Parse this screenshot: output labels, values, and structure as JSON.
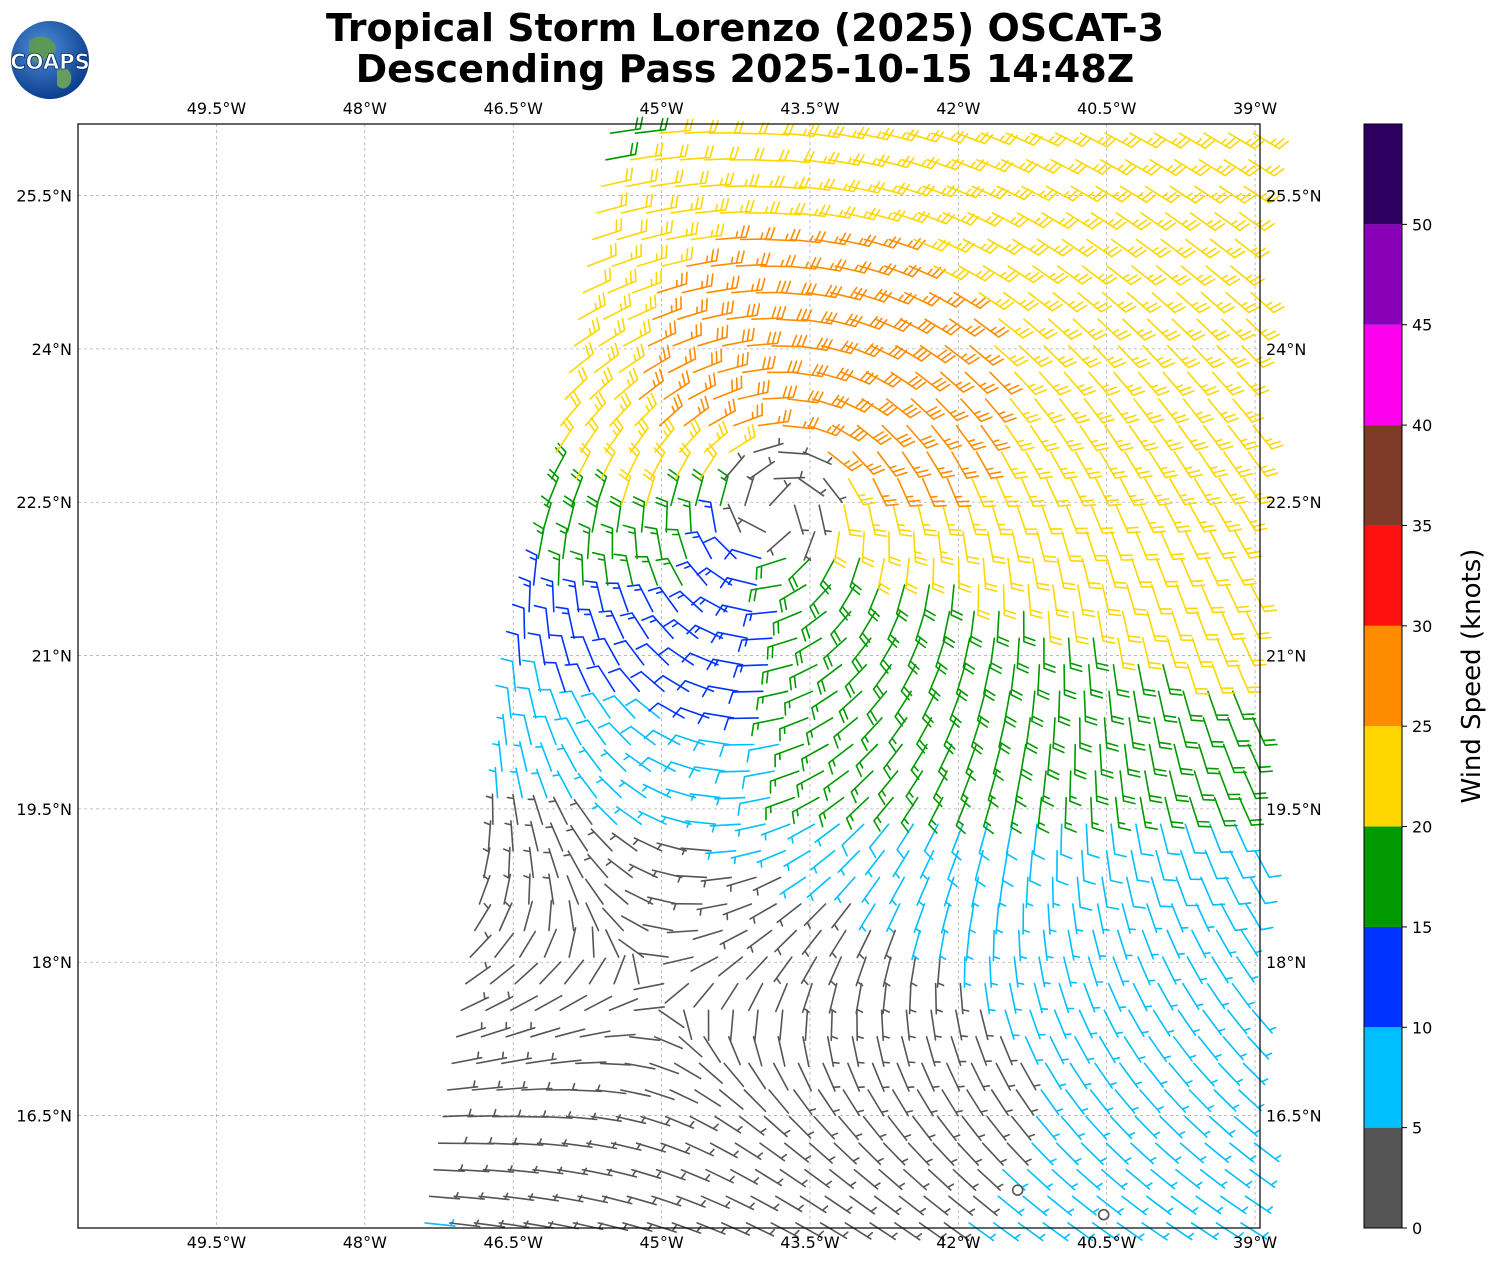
{
  "title_line1": "Tropical Storm Lorenzo (2025) OSCAT-3",
  "title_line2": "Descending Pass 2025-10-15 14:48Z",
  "logo": {
    "text": "COAPS",
    "icon": "globe-icon"
  },
  "map": {
    "lon_range": [
      -50.9,
      -38.95
    ],
    "lat_range": [
      15.4,
      26.2
    ],
    "lon_ticks": [
      "49.5°W",
      "48°W",
      "46.5°W",
      "45°W",
      "43.5°W",
      "42°W",
      "40.5°W",
      "39°W"
    ],
    "lat_ticks": [
      "25.5°N",
      "24°N",
      "22.5°N",
      "21°N",
      "19.5°N",
      "18°N",
      "16.5°N"
    ],
    "gridlines": true,
    "storm_center": {
      "lon": -43.8,
      "lat": 22.6
    },
    "rain_flag_markers": [
      {
        "lon": -41.4,
        "lat": 15.77
      },
      {
        "lon": -40.53,
        "lat": 15.53
      }
    ]
  },
  "colorbar": {
    "label": "Wind Speed (knots)",
    "ticks": [
      "0",
      "5",
      "10",
      "15",
      "20",
      "25",
      "30",
      "35",
      "40",
      "45",
      "50"
    ],
    "bins": [
      {
        "min": 0,
        "max": 5,
        "color": "#555555"
      },
      {
        "min": 5,
        "max": 10,
        "color": "#00bfff"
      },
      {
        "min": 10,
        "max": 15,
        "color": "#0033ff"
      },
      {
        "min": 15,
        "max": 20,
        "color": "#009900"
      },
      {
        "min": 20,
        "max": 25,
        "color": "#ffd700"
      },
      {
        "min": 25,
        "max": 30,
        "color": "#ff8c00"
      },
      {
        "min": 30,
        "max": 35,
        "color": "#ff1010"
      },
      {
        "min": 35,
        "max": 40,
        "color": "#7f3a28"
      },
      {
        "min": 40,
        "max": 45,
        "color": "#ff00ee"
      },
      {
        "min": 45,
        "max": 50,
        "color": "#8800b8"
      },
      {
        "min": 50,
        "max": 55,
        "color": "#2d0060"
      }
    ]
  }
}
